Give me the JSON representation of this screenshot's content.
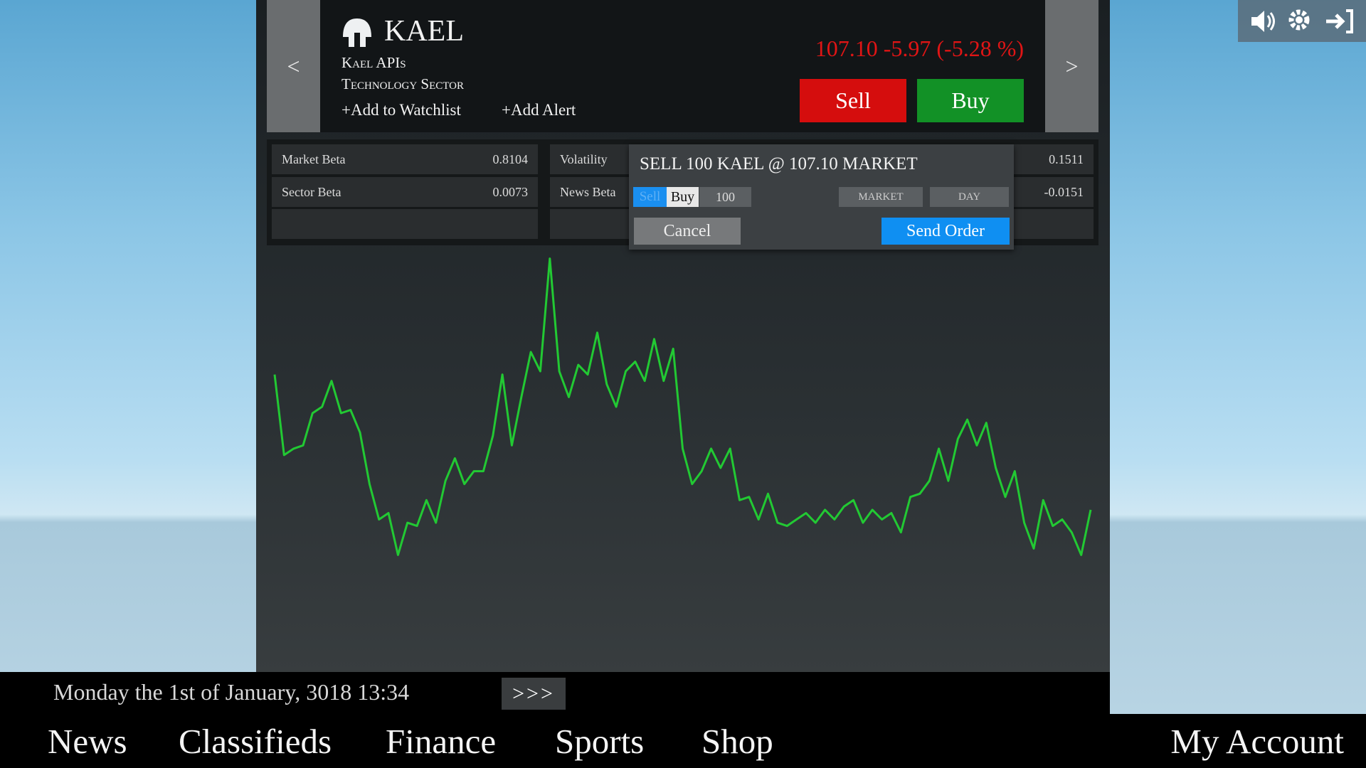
{
  "header": {
    "prev": "<",
    "next": ">",
    "ticker": "KAEL",
    "company": "Kael APIs",
    "sector": "Technology Sector",
    "add_watchlist": "+Add to Watchlist",
    "add_alert": "+Add Alert",
    "quote": "107.10 -5.97 (-5.28 %)",
    "sell": "Sell",
    "buy": "Buy"
  },
  "stats": {
    "rows": [
      [
        "Market Beta",
        "0.8104",
        "Volatility",
        "0.1511"
      ],
      [
        "Sector Beta",
        "0.0073",
        "News Beta",
        "-0.0151"
      ]
    ]
  },
  "order_dialog": {
    "title": "SELL 100 KAEL @ 107.10 MARKET",
    "side_sell": "Sell",
    "side_buy": "Buy",
    "quantity": "100",
    "order_type": "MARKET",
    "duration": "DAY",
    "cancel": "Cancel",
    "send": "Send Order"
  },
  "chart_data": {
    "type": "line",
    "color": "#22c933",
    "ylim": [
      0,
      100
    ],
    "values": [
      61,
      36,
      38,
      39,
      49,
      51,
      59,
      49,
      50,
      43,
      27,
      16,
      18,
      5,
      15,
      14,
      22,
      15,
      28,
      35,
      27,
      31,
      31,
      42,
      61,
      39,
      54,
      68,
      62,
      97,
      62,
      54,
      64,
      61,
      74,
      58,
      51,
      62,
      65,
      59,
      72,
      59,
      69,
      38,
      27,
      31,
      38,
      32,
      38,
      22,
      23,
      16,
      24,
      15,
      14,
      16,
      18,
      15,
      19,
      16,
      20,
      22,
      15,
      19,
      16,
      18,
      12,
      23,
      24,
      28,
      38,
      28,
      41,
      47,
      39,
      46,
      32,
      23,
      31,
      15,
      7,
      22,
      14,
      16,
      12,
      5,
      19
    ]
  },
  "status": {
    "date": "Monday the 1st of January, 3018 13:34",
    "more": ">>>"
  },
  "nav": {
    "items": [
      "News",
      "Classifieds",
      "Finance",
      "Sports",
      "Shop"
    ],
    "account": "My Account"
  }
}
